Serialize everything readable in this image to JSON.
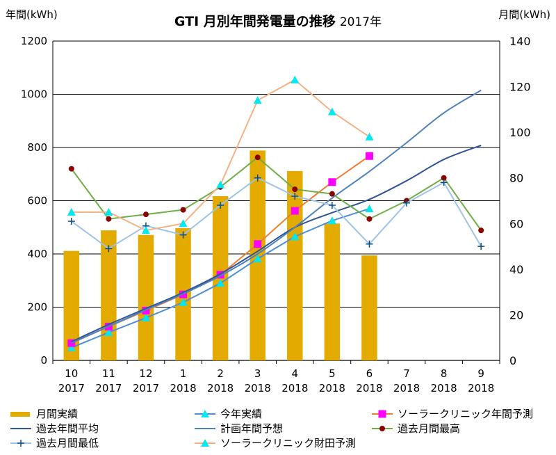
{
  "chart_data": {
    "type": "bar+line",
    "title": "GTI 月別年間発電量の推移",
    "subtitle": "2017年",
    "y_left_label": "年間(kWh)",
    "y_right_label": "月間(kWh)",
    "y_left_lim": [
      0,
      1200
    ],
    "y_left_ticks": [
      "0",
      "200",
      "400",
      "600",
      "800",
      "1000",
      "1200"
    ],
    "y_right_lim": [
      0,
      140
    ],
    "y_right_ticks": [
      "0",
      "20",
      "40",
      "60",
      "80",
      "100",
      "120",
      "140"
    ],
    "grid": true,
    "categories": [
      {
        "month": "10",
        "year": "2017"
      },
      {
        "month": "11",
        "year": "2017"
      },
      {
        "month": "12",
        "year": "2017"
      },
      {
        "month": "1",
        "year": "2018"
      },
      {
        "month": "2",
        "year": "2018"
      },
      {
        "month": "3",
        "year": "2018"
      },
      {
        "month": "4",
        "year": "2018"
      },
      {
        "month": "5",
        "year": "2018"
      },
      {
        "month": "6",
        "year": "2018"
      },
      {
        "month": "7",
        "year": "2018"
      },
      {
        "month": "8",
        "year": "2018"
      },
      {
        "month": "9",
        "year": "2018"
      }
    ],
    "series": [
      {
        "name": "月間実績",
        "type": "bar",
        "axis": "right",
        "color": "#E3AA00",
        "values": [
          48,
          57,
          55,
          58,
          72,
          92,
          83,
          60,
          46,
          null,
          null,
          null
        ]
      },
      {
        "name": "今年実績",
        "type": "line",
        "axis": "left",
        "color": "#4D8FD6",
        "marker": "triangle",
        "marker_color": "#00E8F0",
        "values": [
          48,
          105,
          160,
          218,
          290,
          382,
          465,
          525,
          570,
          null,
          null,
          null
        ]
      },
      {
        "name": "ソーラークリニック年間予測",
        "type": "line",
        "axis": "left",
        "color": "#ED7D31",
        "marker": "square",
        "marker_color": "#FF00FF",
        "values": [
          65,
          127,
          187,
          248,
          322,
          437,
          562,
          670,
          768,
          null,
          null,
          null
        ]
      },
      {
        "name": "過去年間平均",
        "type": "line",
        "axis": "left",
        "color": "#2F5597",
        "marker": "none",
        "values": [
          70,
          135,
          195,
          255,
          325,
          410,
          500,
          555,
          605,
          675,
          755,
          808
        ]
      },
      {
        "name": "計画年間予想",
        "type": "line",
        "axis": "left",
        "color": "#4F81BD",
        "marker": "none",
        "values": [
          65,
          128,
          190,
          250,
          318,
          400,
          500,
          610,
          710,
          818,
          930,
          1015
        ]
      },
      {
        "name": "過去月間最高",
        "type": "line",
        "axis": "right",
        "color": "#70AD47",
        "marker": "circle",
        "marker_color": "#8B0000",
        "values": [
          84,
          62,
          64,
          66,
          76,
          89,
          75,
          73,
          62,
          70,
          80,
          57
        ]
      },
      {
        "name": "過去月間最低",
        "type": "line",
        "axis": "right",
        "color": "#9DC3E6",
        "marker": "plus",
        "marker_color": "#0A4A80",
        "values": [
          61,
          49,
          59,
          55,
          68,
          80,
          72,
          68,
          51,
          69,
          78,
          50
        ]
      },
      {
        "name": "ソーラークリニック財田予測",
        "type": "line",
        "axis": "right",
        "color": "#F4B183",
        "marker": "triangle",
        "marker_color": "#00E8F0",
        "values": [
          65,
          65,
          57,
          60,
          77,
          114,
          123,
          109,
          98,
          null,
          null,
          null
        ]
      }
    ],
    "legend_position": "bottom"
  }
}
